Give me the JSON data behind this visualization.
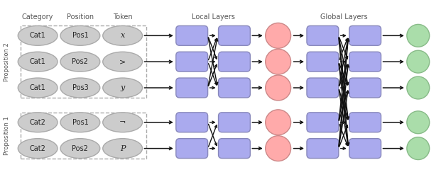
{
  "fig_width": 6.28,
  "fig_height": 2.5,
  "dpi": 100,
  "bg_color": "#ffffff",
  "input_ellipse_color": "#cccccc",
  "input_ellipse_edge": "#aaaaaa",
  "local_rect_color": "#aaaaee",
  "local_rect_edge": "#8888bb",
  "mid_circle_color": "#ffaaaa",
  "mid_circle_edge": "#cc8888",
  "global_rect_color": "#aaaaee",
  "global_rect_edge": "#8888bb",
  "output_circle_color": "#aaddaa",
  "output_circle_edge": "#88bb88",
  "text_color": "#222222",
  "header_color": "#555555",
  "prop_label_color": "#555555",
  "dashed_edge_color": "#aaaaaa",
  "arrow_color": "#111111",
  "categories": [
    "Cat1",
    "Cat1",
    "Cat1",
    "Cat2",
    "Cat2"
  ],
  "positions_labels": [
    "Pos1",
    "Pos2",
    "Pos3",
    "Pos1",
    "Pos2"
  ],
  "tokens": [
    "x",
    ">",
    "y",
    "¬",
    "P"
  ],
  "token_italic": [
    true,
    false,
    true,
    false,
    true
  ],
  "proposition2_rows": [
    0,
    1,
    2
  ],
  "proposition1_rows": [
    3,
    4
  ]
}
